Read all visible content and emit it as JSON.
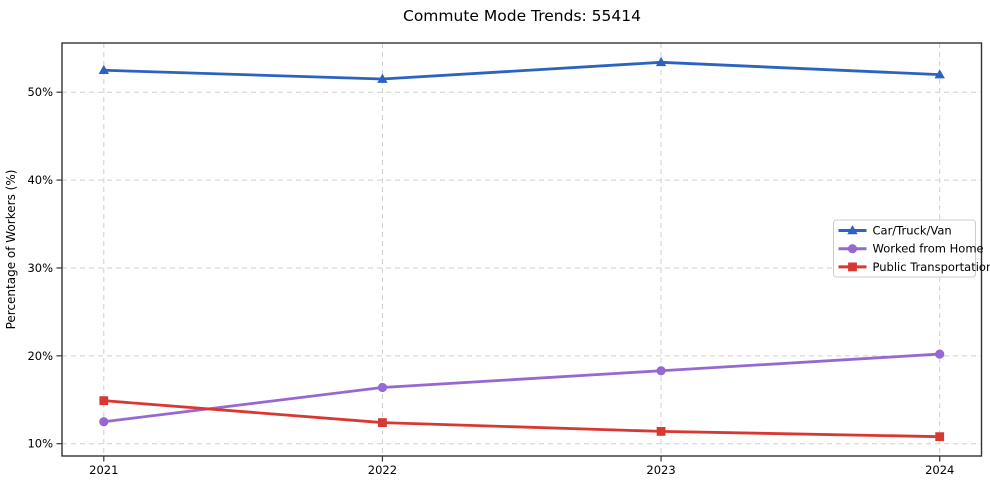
{
  "page": {
    "title": "Commute Mode Trends: 55414"
  },
  "colors": {
    "background": "#ffffff",
    "grid": "#cfcfcf",
    "frame": "#333333",
    "text": "#000000",
    "legend_border": "#cccccc",
    "legend_fill": "#ffffff"
  },
  "chart_data": {
    "type": "line",
    "title": "Commute Mode Trends: 55414",
    "xlabel": "",
    "ylabel": "Percentage of Workers (%)",
    "x": [
      2021,
      2022,
      2023,
      2024
    ],
    "x_tick_labels": [
      "2021",
      "2022",
      "2023",
      "2024"
    ],
    "y_ticks": [
      10,
      20,
      30,
      40,
      50
    ],
    "y_tick_labels": [
      "10%",
      "20%",
      "30%",
      "40%",
      "50%"
    ],
    "xlim": [
      2020.85,
      2024.15
    ],
    "ylim": [
      8.6,
      55.6
    ],
    "grid": "dashed-both",
    "legend_position": "center-right",
    "series": [
      {
        "name": "Car/Truck/Van",
        "marker": "triangle-up",
        "color": "#2c63c1",
        "values": [
          52.5,
          51.5,
          53.4,
          52.0
        ]
      },
      {
        "name": "Worked from Home",
        "marker": "circle",
        "color": "#9668d2",
        "values": [
          12.5,
          16.4,
          18.3,
          20.2
        ]
      },
      {
        "name": "Public Transportation",
        "marker": "square",
        "color": "#d93832",
        "values": [
          14.9,
          12.4,
          11.4,
          10.8
        ]
      }
    ]
  }
}
